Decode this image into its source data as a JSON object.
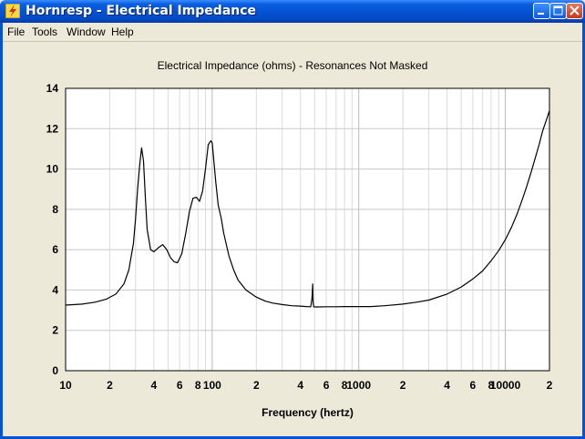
{
  "window": {
    "title": "Hornresp - Electrical Impedance",
    "controls": [
      "minimize",
      "maximize",
      "close"
    ]
  },
  "menu": {
    "items": [
      "File",
      "Tools",
      "Window",
      "Help"
    ]
  },
  "chart_data": {
    "type": "line",
    "title": "Electrical Impedance (ohms) - Resonances Not Masked",
    "xlabel": "Frequency (hertz)",
    "ylabel": "",
    "xscale": "log",
    "xlim": [
      10,
      20000
    ],
    "ylim": [
      0,
      14
    ],
    "grid": true,
    "yticks": [
      0,
      2,
      4,
      6,
      8,
      10,
      12,
      14
    ],
    "xtick_labels": [
      {
        "x": 10,
        "label": "10"
      },
      {
        "x": 20,
        "label": "2"
      },
      {
        "x": 40,
        "label": "4"
      },
      {
        "x": 60,
        "label": "6"
      },
      {
        "x": 80,
        "label": "8"
      },
      {
        "x": 100,
        "label": "100"
      },
      {
        "x": 200,
        "label": "2"
      },
      {
        "x": 400,
        "label": "4"
      },
      {
        "x": 600,
        "label": "6"
      },
      {
        "x": 800,
        "label": "8"
      },
      {
        "x": 1000,
        "label": "1000"
      },
      {
        "x": 2000,
        "label": "2"
      },
      {
        "x": 4000,
        "label": "4"
      },
      {
        "x": 6000,
        "label": "6"
      },
      {
        "x": 8000,
        "label": "8"
      },
      {
        "x": 10000,
        "label": "10000"
      },
      {
        "x": 20000,
        "label": "2"
      }
    ],
    "series": [
      {
        "color": "#000000",
        "x": [
          10,
          13,
          16,
          19,
          22,
          25,
          27,
          29,
          30,
          31,
          32,
          33,
          34,
          35,
          36,
          38,
          40,
          43,
          46,
          49,
          52,
          55,
          58,
          62,
          66,
          70,
          74,
          78,
          82,
          86,
          90,
          94,
          98,
          100,
          103,
          106,
          110,
          115,
          120,
          130,
          140,
          150,
          170,
          200,
          230,
          260,
          300,
          350,
          400,
          440,
          470,
          480,
          485,
          488,
          492,
          500,
          520,
          600,
          700,
          800,
          1000,
          1200,
          1500,
          2000,
          2500,
          3000,
          4000,
          5000,
          6000,
          7000,
          8000,
          9000,
          10000,
          11000,
          12000,
          13000,
          14000,
          15000,
          16000,
          17000,
          18000,
          19000,
          20000
        ],
        "y": [
          3.25,
          3.3,
          3.4,
          3.55,
          3.8,
          4.3,
          5.0,
          6.3,
          7.5,
          9.0,
          10.2,
          11.05,
          10.4,
          8.6,
          7.0,
          6.0,
          5.9,
          6.1,
          6.25,
          6.0,
          5.6,
          5.4,
          5.35,
          5.8,
          6.8,
          7.9,
          8.55,
          8.6,
          8.4,
          8.9,
          10.0,
          11.2,
          11.4,
          11.3,
          10.3,
          9.3,
          8.2,
          7.6,
          6.8,
          5.7,
          5.0,
          4.5,
          4.0,
          3.65,
          3.45,
          3.35,
          3.28,
          3.22,
          3.2,
          3.18,
          3.17,
          3.6,
          4.3,
          3.4,
          3.17,
          3.16,
          3.16,
          3.17,
          3.17,
          3.18,
          3.18,
          3.18,
          3.22,
          3.3,
          3.4,
          3.5,
          3.8,
          4.15,
          4.55,
          4.95,
          5.45,
          5.95,
          6.5,
          7.1,
          7.75,
          8.45,
          9.15,
          9.85,
          10.55,
          11.2,
          11.9,
          12.4,
          12.9
        ]
      }
    ]
  }
}
